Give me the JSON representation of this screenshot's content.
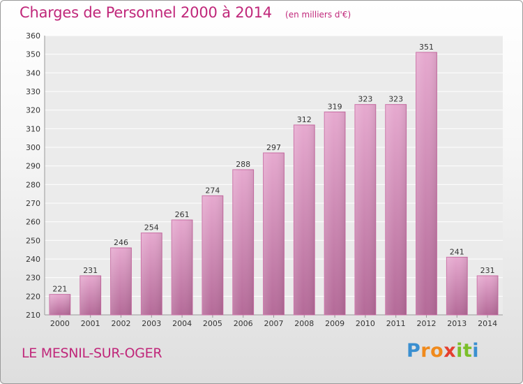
{
  "chart_data": {
    "type": "bar",
    "title": "Charges de Personnel 2000 à 2014",
    "subtitle": "(en milliers d'€)",
    "categories": [
      "2000",
      "2001",
      "2002",
      "2003",
      "2004",
      "2005",
      "2006",
      "2007",
      "2008",
      "2009",
      "2010",
      "2011",
      "2012",
      "2013",
      "2014"
    ],
    "values": [
      221,
      231,
      246,
      254,
      261,
      274,
      288,
      297,
      312,
      319,
      323,
      323,
      351,
      241,
      231
    ],
    "ylim": [
      210,
      360
    ],
    "yticks": [
      210,
      220,
      230,
      240,
      250,
      260,
      270,
      280,
      290,
      300,
      310,
      320,
      330,
      340,
      350,
      360
    ],
    "grid": true,
    "bar_color": "#d585b5"
  },
  "footer": {
    "town": "LE MESNIL-SUR-OGER",
    "logo_letters": [
      {
        "ch": "P",
        "color": "#3a8fd0"
      },
      {
        "ch": "r",
        "color": "#f08a1c"
      },
      {
        "ch": "o",
        "color": "#f08a1c"
      },
      {
        "ch": "x",
        "color": "#e53f2f"
      },
      {
        "ch": "i",
        "color": "#7bbf2a"
      },
      {
        "ch": "t",
        "color": "#7bbf2a"
      },
      {
        "ch": "i",
        "color": "#3a8fd0"
      }
    ]
  }
}
